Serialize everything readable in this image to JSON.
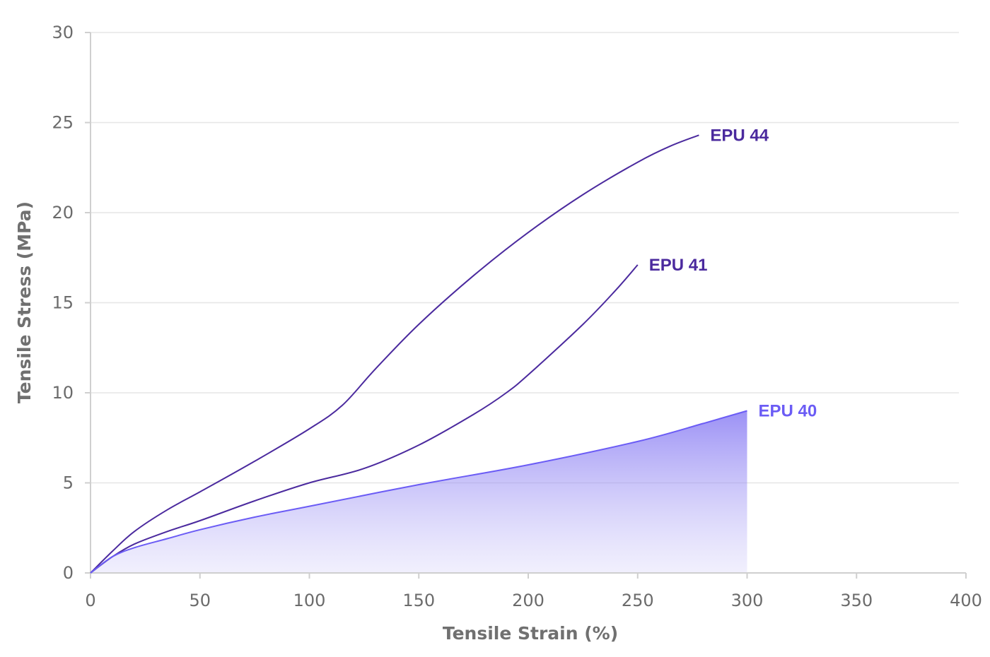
{
  "chart_data": {
    "type": "line",
    "title": "",
    "xlabel": "Tensile Strain (%)",
    "ylabel": "Tensile Stress (MPa)",
    "xlim": [
      0,
      400
    ],
    "ylim": [
      0,
      30
    ],
    "x_ticks": [
      "0",
      "50",
      "100",
      "150",
      "200",
      "250",
      "300",
      "350",
      "400"
    ],
    "y_ticks": [
      "0",
      "5",
      "10",
      "15",
      "20",
      "25",
      "30"
    ],
    "grid": "horizontal",
    "legend": "none (labels at line ends)",
    "series": [
      {
        "name": "EPU 44",
        "color": "#4b2a9e",
        "filled": false,
        "points": [
          [
            0,
            0
          ],
          [
            10,
            1.2
          ],
          [
            20,
            2.3
          ],
          [
            35,
            3.5
          ],
          [
            50,
            4.5
          ],
          [
            75,
            6.2
          ],
          [
            100,
            8.0
          ],
          [
            115,
            9.3
          ],
          [
            130,
            11.3
          ],
          [
            150,
            13.8
          ],
          [
            175,
            16.5
          ],
          [
            200,
            18.9
          ],
          [
            225,
            21.0
          ],
          [
            250,
            22.8
          ],
          [
            265,
            23.7
          ],
          [
            278,
            24.3
          ]
        ]
      },
      {
        "name": "EPU 41",
        "color": "#4b2a9e",
        "filled": false,
        "points": [
          [
            0,
            0
          ],
          [
            10,
            0.9
          ],
          [
            20,
            1.6
          ],
          [
            35,
            2.3
          ],
          [
            50,
            2.9
          ],
          [
            75,
            4.0
          ],
          [
            100,
            5.0
          ],
          [
            125,
            5.8
          ],
          [
            150,
            7.1
          ],
          [
            175,
            8.8
          ],
          [
            190,
            10.0
          ],
          [
            200,
            11.0
          ],
          [
            225,
            13.8
          ],
          [
            240,
            15.7
          ],
          [
            250,
            17.1
          ]
        ]
      },
      {
        "name": "EPU 40",
        "color": "#6b5cf5",
        "filled": true,
        "points": [
          [
            0,
            0
          ],
          [
            10,
            0.9
          ],
          [
            20,
            1.4
          ],
          [
            35,
            1.9
          ],
          [
            50,
            2.4
          ],
          [
            75,
            3.1
          ],
          [
            100,
            3.7
          ],
          [
            150,
            4.9
          ],
          [
            200,
            6.0
          ],
          [
            250,
            7.3
          ],
          [
            280,
            8.3
          ],
          [
            300,
            9.0
          ]
        ]
      }
    ]
  }
}
